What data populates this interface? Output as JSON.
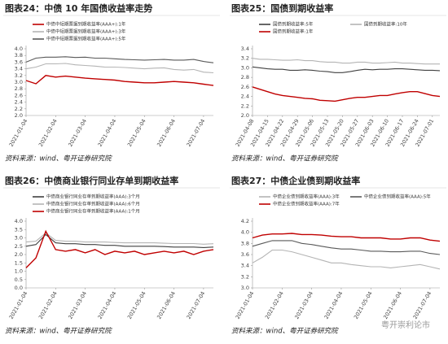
{
  "chart_data": [
    {
      "type": "line",
      "title": "图表24：中债 10 年国债收益率走势",
      "source": "资料来源：wind、粤开证券研究院",
      "categories": [
        "2021-01-04",
        null,
        null,
        "2021-02-04",
        null,
        null,
        "2021-03-04",
        null,
        null,
        "2021-04-04",
        null,
        null,
        "2021-05-04",
        null,
        null,
        "2021-06-04",
        null,
        null,
        "2021-07-04",
        null
      ],
      "ylim": [
        2,
        4
      ],
      "yticks": [
        {
          "value": 2,
          "label": "2.0"
        },
        2.2,
        2.4,
        2.6,
        2.8,
        {
          "value": 3,
          "label": "3.0"
        },
        3.2,
        3.4,
        3.6,
        3.8,
        {
          "value": 4,
          "label": "4.0"
        }
      ],
      "series": [
        {
          "name": "中债中短期票据到期收益率(AAA+):1年",
          "color": "#c00000",
          "values": [
            3.05,
            2.95,
            3.2,
            3.15,
            3.18,
            3.15,
            3.12,
            3.1,
            3.08,
            3.06,
            3.02,
            3.0,
            2.98,
            2.98,
            3.0,
            3.02,
            3.0,
            2.98,
            2.94,
            2.9
          ]
        },
        {
          "name": "中债中短期票据到期收益率(AAA+):3年",
          "color": "#b4b4b4",
          "values": [
            3.4,
            3.45,
            3.55,
            3.55,
            3.56,
            3.52,
            3.5,
            3.48,
            3.45,
            3.45,
            3.44,
            3.42,
            3.4,
            3.42,
            3.43,
            3.38,
            3.36,
            3.38,
            3.3,
            3.28
          ]
        },
        {
          "name": "中债中短期票据到期收益率(AAA+):5年",
          "color": "#595959",
          "values": [
            3.6,
            3.72,
            3.75,
            3.75,
            3.76,
            3.74,
            3.75,
            3.72,
            3.72,
            3.7,
            3.68,
            3.67,
            3.66,
            3.67,
            3.68,
            3.66,
            3.66,
            3.68,
            3.62,
            3.58
          ]
        }
      ]
    },
    {
      "type": "line",
      "title": "图表25：国债到期收益率",
      "source": "资料来源：wind、粤开证券研究院",
      "categories": [
        "2021-04-08",
        null,
        "2021-04-15",
        null,
        "2021-04-22",
        null,
        "2021-04-29",
        null,
        "2021-05-06",
        null,
        "2021-05-13",
        null,
        "2021-05-20",
        null,
        "2021-05-27",
        null,
        "2021-06-03",
        null,
        "2021-06-10",
        null,
        "2021-06-17",
        null,
        "2021-06-24",
        null,
        "2021-07-01",
        null
      ],
      "ylim": [
        2,
        3.4
      ],
      "yticks": [
        {
          "value": 2,
          "label": "2.0"
        },
        2.2,
        2.4,
        2.6,
        2.8,
        {
          "value": 3,
          "label": "3.0"
        },
        3.2,
        3.4
      ],
      "series": [
        {
          "name": "国债到期收益率:5年",
          "color": "#404040",
          "values": [
            3.02,
            3.0,
            2.98,
            2.97,
            2.97,
            2.95,
            2.95,
            2.96,
            2.95,
            2.93,
            2.92,
            2.9,
            2.9,
            2.92,
            2.95,
            2.97,
            2.96,
            2.97,
            2.97,
            2.98,
            2.98,
            2.97,
            2.96,
            2.95,
            2.95,
            2.94
          ]
        },
        {
          "name": "国债到期收益率:10年",
          "color": "#b4b4b4",
          "values": [
            3.2,
            3.18,
            3.18,
            3.17,
            3.16,
            3.16,
            3.17,
            3.15,
            3.15,
            3.13,
            3.12,
            3.12,
            3.1,
            3.1,
            3.12,
            3.12,
            3.1,
            3.1,
            3.11,
            3.12,
            3.1,
            3.1,
            3.09,
            3.08,
            3.08,
            3.08
          ]
        },
        {
          "name": "国债到期收益率:1年",
          "color": "#c00000",
          "values": [
            2.6,
            2.55,
            2.5,
            2.45,
            2.42,
            2.4,
            2.38,
            2.36,
            2.35,
            2.32,
            2.31,
            2.3,
            2.33,
            2.36,
            2.38,
            2.38,
            2.4,
            2.42,
            2.42,
            2.45,
            2.48,
            2.5,
            2.5,
            2.46,
            2.42,
            2.4
          ]
        }
      ]
    },
    {
      "type": "line",
      "title": "图表26：中债商业银行同业存单到期收益率",
      "source": "资料来源：wind、粤开证券研究院",
      "categories": [
        "2021-01-04",
        null,
        null,
        "2021-02-04",
        null,
        null,
        "2021-03-04",
        null,
        null,
        "2021-04-04",
        null,
        null,
        "2021-05-04",
        null,
        null,
        "2021-06-04",
        null,
        null,
        "2021-07-04",
        null
      ],
      "ylim": [
        0,
        4
      ],
      "yticks": [
        {
          "value": 0,
          "label": "0.0"
        },
        0.5,
        {
          "value": 1,
          "label": "1.0"
        },
        1.5,
        {
          "value": 2,
          "label": "2.0"
        },
        2.5,
        {
          "value": 3,
          "label": "3.0"
        },
        3.5,
        {
          "value": 4,
          "label": "4.0"
        }
      ],
      "series": [
        {
          "name": "中债商业银行同业存单到期收益率(AAA):3个月",
          "color": "#404040",
          "values": [
            2.5,
            2.6,
            3.2,
            2.7,
            2.65,
            2.65,
            2.6,
            2.6,
            2.55,
            2.55,
            2.5,
            2.5,
            2.5,
            2.5,
            2.48,
            2.45,
            2.45,
            2.45,
            2.42,
            2.45
          ]
        },
        {
          "name": "中债商业银行同业存单到期收益率(AAA):6个月",
          "color": "#b4b4b4",
          "values": [
            2.75,
            2.8,
            3.3,
            2.85,
            2.8,
            2.8,
            2.75,
            2.75,
            2.75,
            2.72,
            2.7,
            2.7,
            2.7,
            2.7,
            2.68,
            2.66,
            2.66,
            2.66,
            2.62,
            2.65
          ]
        },
        {
          "name": "中债商业银行同业存单到期收益率(AAA):1个月",
          "color": "#c00000",
          "values": [
            1.2,
            1.8,
            3.4,
            2.3,
            2.2,
            2.3,
            2.1,
            2.3,
            2.0,
            2.2,
            2.1,
            2.2,
            2.0,
            2.1,
            2.2,
            2.1,
            2.2,
            2.0,
            2.2,
            2.3
          ]
        }
      ]
    },
    {
      "type": "line",
      "title": "图表27：中债企业债到期收益率",
      "source": "资料来源：wind、粤开证券研究院",
      "categories": [
        "2021-01-04",
        null,
        null,
        "2021-02-04",
        null,
        null,
        "2021-03-04",
        null,
        null,
        "2021-04-04",
        null,
        null,
        "2021-05-04",
        null,
        null,
        "2021-06-04",
        null,
        null,
        "2021-07-04",
        null
      ],
      "ylim": [
        3,
        4.2
      ],
      "yticks": [
        {
          "value": 3,
          "label": "3.0"
        },
        3.2,
        3.4,
        3.6,
        3.8,
        {
          "value": 4,
          "label": "4.0"
        },
        4.2
      ],
      "series": [
        {
          "name": "中债企业债到期收益率(AAA):3年",
          "color": "#b4b4b4",
          "values": [
            3.45,
            3.55,
            3.68,
            3.68,
            3.65,
            3.6,
            3.55,
            3.5,
            3.45,
            3.45,
            3.42,
            3.4,
            3.38,
            3.38,
            3.36,
            3.38,
            3.4,
            3.42,
            3.38,
            3.34
          ]
        },
        {
          "name": "中债企业债到期收益率(AAA):5年",
          "color": "#595959",
          "values": [
            3.75,
            3.8,
            3.85,
            3.85,
            3.85,
            3.8,
            3.78,
            3.75,
            3.72,
            3.7,
            3.7,
            3.68,
            3.66,
            3.66,
            3.65,
            3.65,
            3.66,
            3.66,
            3.62,
            3.6
          ]
        },
        {
          "name": "中债企业债到期收益率(AAA):7年",
          "color": "#c00000",
          "values": [
            3.9,
            3.95,
            3.97,
            3.97,
            3.98,
            3.96,
            3.96,
            3.95,
            3.93,
            3.92,
            3.92,
            3.9,
            3.9,
            3.9,
            3.88,
            3.88,
            3.9,
            3.9,
            3.86,
            3.84
          ]
        }
      ]
    }
  ],
  "watermark": "粤开崇利论市"
}
